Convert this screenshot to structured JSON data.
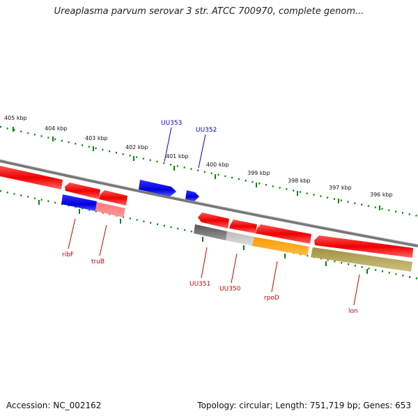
{
  "title": "Ureaplasma parvum serovar 3 str. ATCC 700970, complete genom...",
  "footer": {
    "accession": "Accession: NC_002162",
    "topology": "Topology: circular; Length: 751,719 bp; Genes: 653"
  },
  "ruler_labels": [
    "405 kbp",
    "404 kbp",
    "403 kbp",
    "402 kbp",
    "401 kbp",
    "400 kbp",
    "399 kbp",
    "398 kbp",
    "397 kbp",
    "396 kbp"
  ],
  "genes": {
    "ribF": "ribF",
    "truB": "truB",
    "UU353": "UU353",
    "UU352": "UU352",
    "UU351": "UU351",
    "UU350": "UU350",
    "rpoD": "rpoD",
    "lon": "lon"
  },
  "colors": {
    "forward_strand": "#ff0000",
    "reverse_strand": "#ff0000",
    "blue_feature": "#0000ee",
    "label_red": "#cc0000",
    "label_blue": "#0000cc",
    "ruler_green": "#007700",
    "backbone": "#888888"
  }
}
